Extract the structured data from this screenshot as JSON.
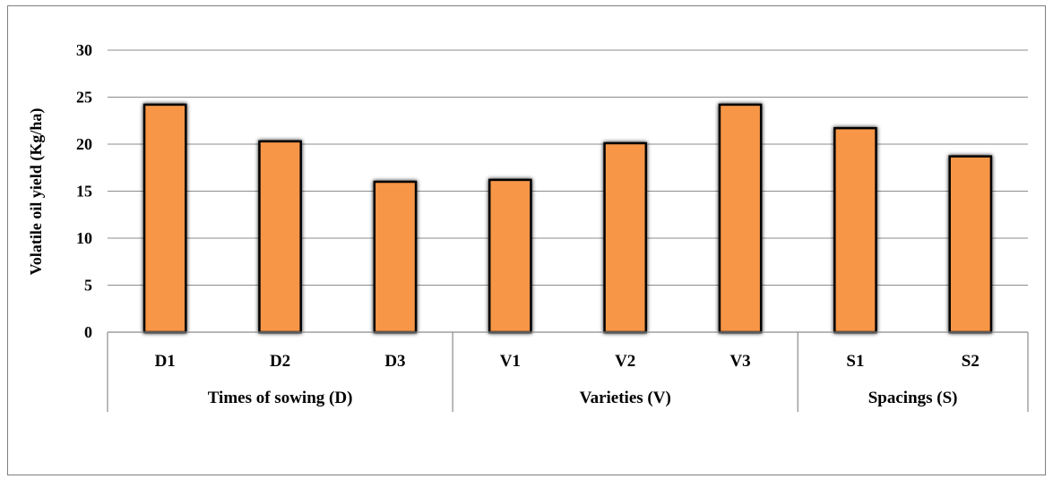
{
  "chart_data": {
    "type": "bar",
    "title": "",
    "ylabel": "Volatile oil yield (Kg/ha)",
    "xlabel": "",
    "ylim": [
      0,
      30
    ],
    "yticks": [
      0,
      5,
      10,
      15,
      20,
      25,
      30
    ],
    "grid": true,
    "bar_color": "#F79646",
    "groups": [
      {
        "label": "Times of sowing (D)",
        "categories": [
          "D1",
          "D2",
          "D3"
        ],
        "values": [
          24.2,
          20.3,
          16.0
        ]
      },
      {
        "label": "Varieties (V)",
        "categories": [
          "V1",
          "V2",
          "V3"
        ],
        "values": [
          16.2,
          20.1,
          24.2
        ]
      },
      {
        "label": "Spacings (S)",
        "categories": [
          "S1",
          "S2"
        ],
        "values": [
          21.7,
          18.7
        ]
      }
    ]
  }
}
